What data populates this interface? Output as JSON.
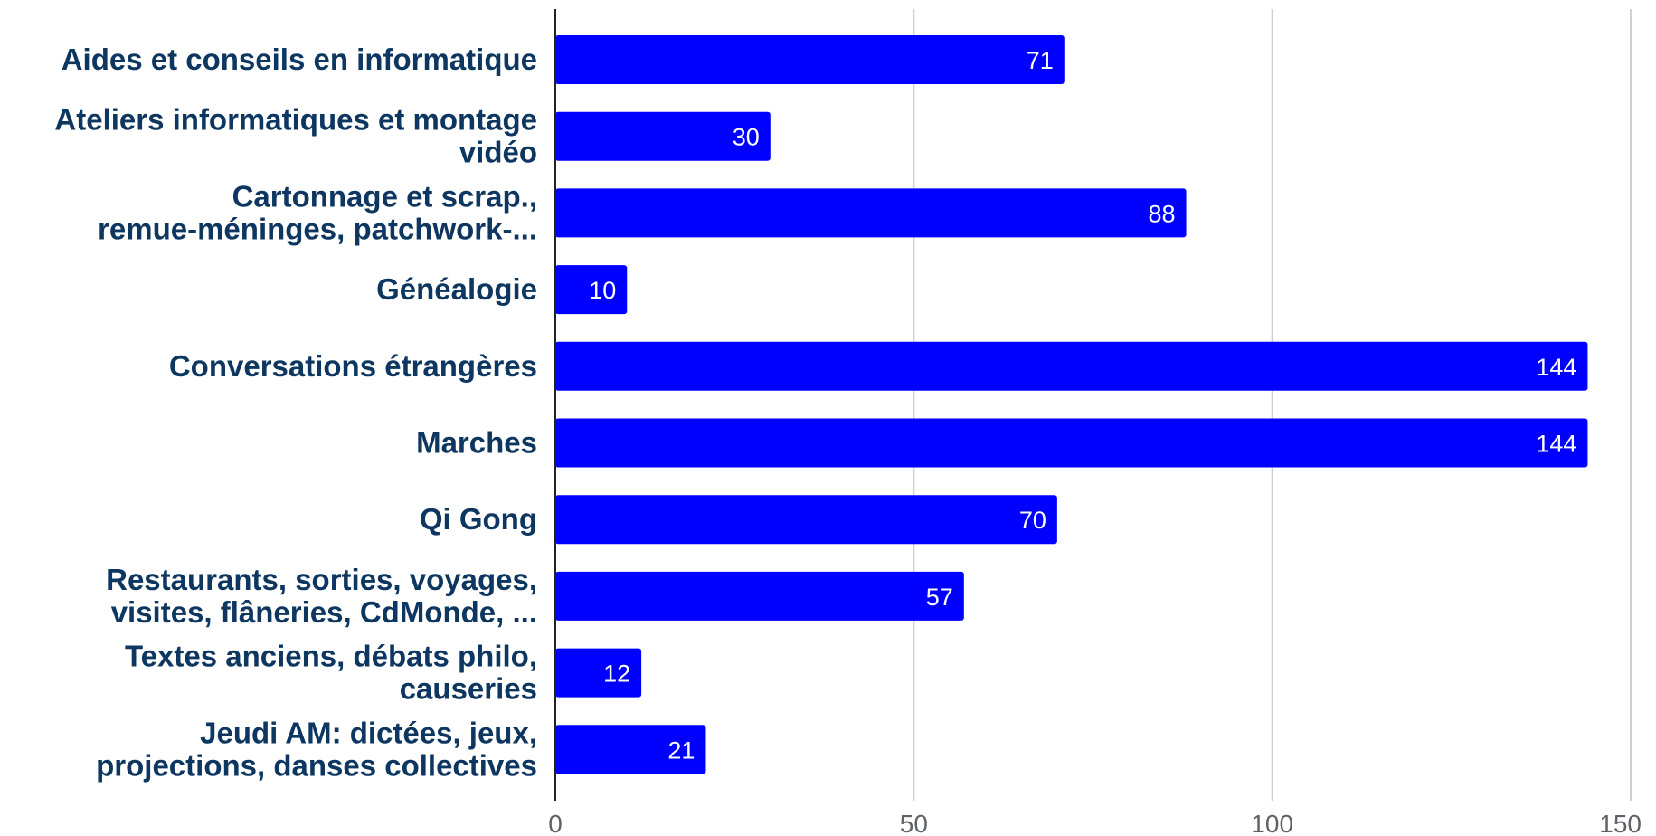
{
  "chart_data": {
    "type": "bar",
    "orientation": "horizontal",
    "title": "",
    "xlabel": "",
    "ylabel": "",
    "categories": [
      [
        "Aides et conseils en informatique"
      ],
      [
        "Ateliers informatiques et montage",
        "vidéo"
      ],
      [
        "Cartonnage et scrap.,",
        "remue-méninges, patchwork-..."
      ],
      [
        "Généalogie"
      ],
      [
        "Conversations étrangères"
      ],
      [
        "Marches"
      ],
      [
        "Qi Gong"
      ],
      [
        "Restaurants, sorties, voyages,",
        "visites, flâneries, CdMonde, ..."
      ],
      [
        "Textes anciens, débats philo,",
        "causeries"
      ],
      [
        "Jeudi AM: dictées, jeux,",
        "projections, danses collectives"
      ]
    ],
    "values": [
      71,
      30,
      88,
      10,
      144,
      144,
      70,
      57,
      12,
      21
    ],
    "xlim": [
      0,
      150
    ],
    "xticks": [
      0,
      50,
      100,
      150
    ],
    "grid": true,
    "legend": "none",
    "bar_color": "#0000ff",
    "label_color": "#0d3660",
    "data_label_color": "#ffffff"
  }
}
